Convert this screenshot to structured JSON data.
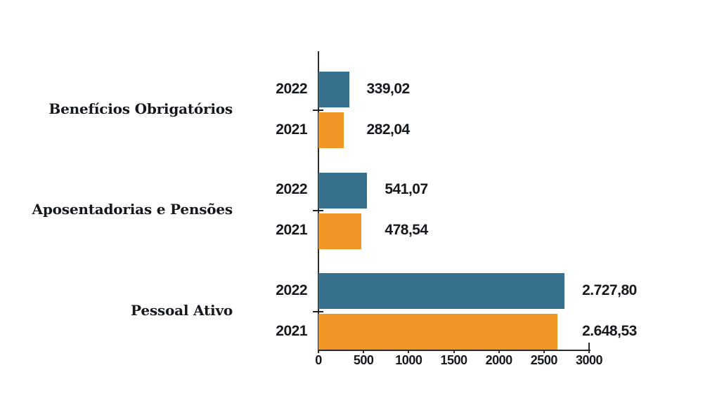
{
  "chart_data": {
    "type": "bar",
    "orientation": "horizontal",
    "title": "",
    "xlabel": "",
    "ylabel": "",
    "grid": false,
    "legend_position": "none",
    "categories": [
      "Benefícios Obrigatórios",
      "Aposentadorias e Pensões",
      "Pessoal Ativo"
    ],
    "series": [
      {
        "name": "2022",
        "color": "#36708C",
        "values": [
          339.02,
          541.07,
          2727.8
        ],
        "value_labels": [
          "339,02",
          "541,07",
          "2.727,80"
        ]
      },
      {
        "name": "2021",
        "color": "#F29527",
        "values": [
          282.04,
          478.54,
          2648.53
        ],
        "value_labels": [
          "282,04",
          "478,54",
          "2.648,53"
        ]
      }
    ],
    "x_axis": {
      "min": 0,
      "max": 3000,
      "ticks": [
        0,
        500,
        1000,
        1500,
        2000,
        2500,
        3000
      ],
      "tick_labels": [
        "0",
        "500",
        "1000",
        "1500",
        "2000",
        "2500",
        "3000"
      ]
    },
    "colors": {
      "axis": "#2b2b2b",
      "text": "#15181c",
      "background": "#ffffff"
    }
  }
}
